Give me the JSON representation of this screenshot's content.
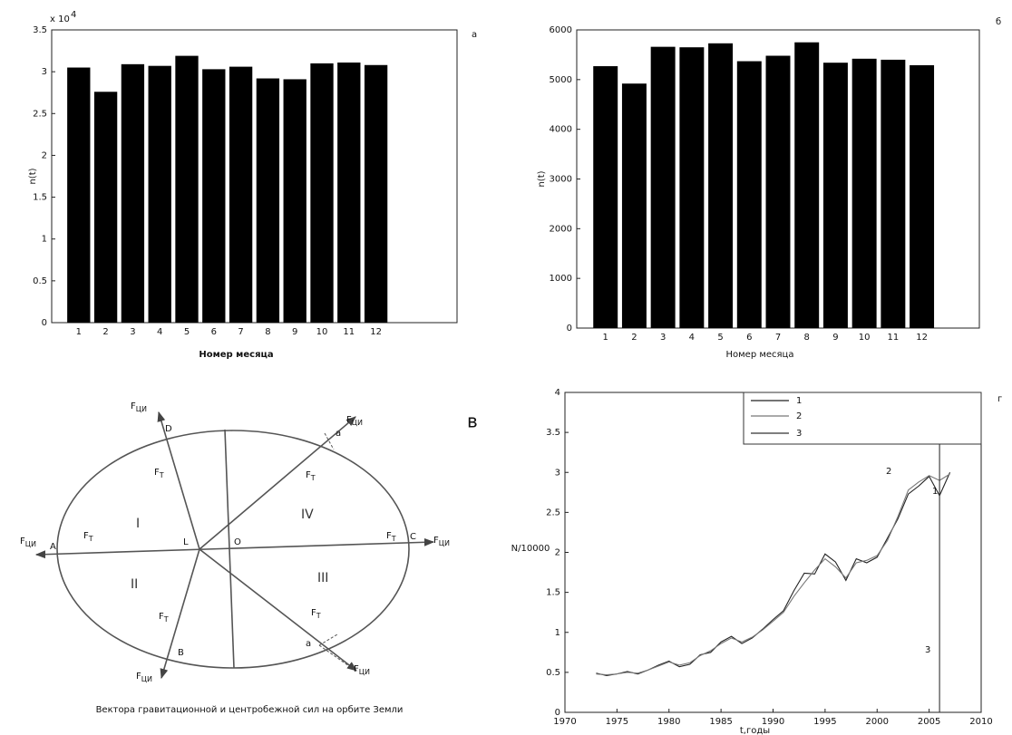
{
  "chart_data": [
    {
      "type": "bar",
      "panel_label": "а",
      "y_scale_label": {
        "base": "x 10",
        "exponent": "4"
      },
      "ylabel": "n(t)",
      "xlabel": "Номер месяца",
      "x": [
        1,
        2,
        3,
        4,
        5,
        6,
        7,
        8,
        9,
        10,
        11,
        12
      ],
      "values": [
        3.05,
        2.76,
        3.09,
        3.07,
        3.19,
        3.03,
        3.06,
        2.92,
        2.91,
        3.1,
        3.11,
        3.08
      ],
      "color": "#000000",
      "xlim": [
        0,
        15
      ],
      "ylim": [
        0,
        3.5
      ],
      "xticks": [
        1,
        2,
        3,
        4,
        5,
        6,
        7,
        8,
        9,
        10,
        11,
        12
      ],
      "yticks": [
        0,
        0.5,
        1,
        1.5,
        2,
        2.5,
        3,
        3.5
      ]
    },
    {
      "type": "bar",
      "panel_label": "б",
      "ylabel": "n(t)",
      "xlabel": "Номер месяца",
      "x": [
        1,
        2,
        3,
        4,
        5,
        6,
        7,
        8,
        9,
        10,
        11,
        12
      ],
      "values": [
        5270,
        4920,
        5660,
        5650,
        5730,
        5370,
        5480,
        5750,
        5340,
        5420,
        5400,
        5290
      ],
      "color": "#000000",
      "xlim": [
        0,
        14
      ],
      "ylim": [
        0,
        6000
      ],
      "xticks": [
        1,
        2,
        3,
        4,
        5,
        6,
        7,
        8,
        9,
        10,
        11,
        12
      ],
      "yticks": [
        0,
        1000,
        2000,
        3000,
        4000,
        5000,
        6000
      ]
    },
    {
      "type": "line",
      "panel_label": "г",
      "ylabel": "N/10000",
      "xlabel": "t,годы",
      "x": [
        1973,
        1974,
        1975,
        1976,
        1977,
        1978,
        1979,
        1980,
        1981,
        1982,
        1983,
        1984,
        1985,
        1986,
        1987,
        1988,
        1989,
        1990,
        1991,
        1992,
        1993,
        1994,
        1995,
        1996,
        1997,
        1998,
        1999,
        2000,
        2001,
        2002,
        2003,
        2004,
        2005,
        2006,
        2007
      ],
      "series": [
        {
          "name": "1",
          "color": "#222222",
          "values": [
            0.49,
            0.46,
            0.48,
            0.51,
            0.48,
            0.53,
            0.59,
            0.64,
            0.57,
            0.6,
            0.72,
            0.75,
            0.88,
            0.95,
            0.86,
            0.93,
            1.04,
            1.16,
            1.27,
            1.52,
            1.74,
            1.73,
            1.98,
            1.88,
            1.65,
            1.92,
            1.87,
            1.94,
            2.18,
            2.42,
            2.73,
            2.83,
            2.95,
            2.71,
            3.0
          ]
        },
        {
          "name": "2",
          "color": "#777777",
          "values": [
            0.48,
            0.47,
            0.48,
            0.5,
            0.49,
            0.53,
            0.58,
            0.63,
            0.59,
            0.62,
            0.71,
            0.77,
            0.86,
            0.93,
            0.88,
            0.94,
            1.03,
            1.14,
            1.25,
            1.45,
            1.62,
            1.78,
            1.92,
            1.82,
            1.68,
            1.87,
            1.9,
            1.96,
            2.15,
            2.45,
            2.78,
            2.88,
            2.96,
            2.9,
            2.98
          ]
        },
        {
          "name": "3",
          "color": "#333333",
          "x": [
            2006,
            2006
          ],
          "values": [
            0,
            3.37
          ]
        }
      ],
      "legend": "upper right",
      "xlim": [
        1970,
        2010
      ],
      "ylim": [
        0,
        4
      ],
      "xticks": [
        1970,
        1975,
        1980,
        1985,
        1990,
        1995,
        2000,
        2005,
        2010
      ],
      "yticks": [
        0,
        0.5,
        1,
        1.5,
        2,
        2.5,
        3,
        3.5,
        4
      ]
    }
  ],
  "diagram": {
    "panel_label": "в",
    "caption": "Вектора гравитационной и центробежной сил на орбите Земли",
    "regions": [
      "I",
      "II",
      "III",
      "IV"
    ],
    "points": [
      "A",
      "B",
      "C",
      "D",
      "L",
      "O",
      "a",
      "a"
    ],
    "forces": {
      "base": "F",
      "centrifugal": "ЦИ",
      "gravitational": "T"
    }
  }
}
